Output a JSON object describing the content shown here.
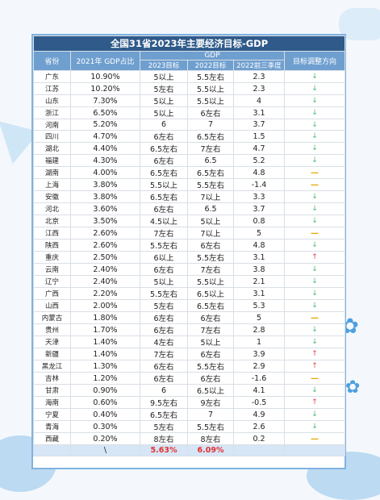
{
  "title": "全国31省2023年主要经济目标-GDP",
  "headers": {
    "province": "省份",
    "share": "2021年 GDP占比",
    "gdp": "GDP",
    "target2023": "2023目标",
    "target2022": "2022目标",
    "q3_2022": "2022前三季度",
    "direction": "目标调整方向"
  },
  "rows": [
    {
      "p": "广东",
      "s": "10.90%",
      "t23": "5以上",
      "t22": "5.5左右",
      "q3": "2.3",
      "d": "down"
    },
    {
      "p": "江苏",
      "s": "10.20%",
      "t23": "5左右",
      "t22": "5.5以上",
      "q3": "2.3",
      "d": "down"
    },
    {
      "p": "山东",
      "s": "7.30%",
      "t23": "5以上",
      "t22": "5.5以上",
      "q3": "4",
      "d": "down"
    },
    {
      "p": "浙江",
      "s": "6.50%",
      "t23": "5以上",
      "t22": "6左右",
      "q3": "3.1",
      "d": "down"
    },
    {
      "p": "河南",
      "s": "5.20%",
      "t23": "6",
      "t22": "7",
      "q3": "3.7",
      "d": "down"
    },
    {
      "p": "四川",
      "s": "4.70%",
      "t23": "6左右",
      "t22": "6.5左右",
      "q3": "1.5",
      "d": "down"
    },
    {
      "p": "湖北",
      "s": "4.40%",
      "t23": "6.5左右",
      "t22": "7左右",
      "q3": "4.7",
      "d": "down"
    },
    {
      "p": "福建",
      "s": "4.30%",
      "t23": "6左右",
      "t22": "6.5",
      "q3": "5.2",
      "d": "down"
    },
    {
      "p": "湖南",
      "s": "4.00%",
      "t23": "6.5左右",
      "t22": "6.5左右",
      "q3": "4.8",
      "d": "flat"
    },
    {
      "p": "上海",
      "s": "3.80%",
      "t23": "5.5以上",
      "t22": "5.5左右",
      "q3": "-1.4",
      "d": "flat"
    },
    {
      "p": "安徽",
      "s": "3.80%",
      "t23": "6.5左右",
      "t22": "7以上",
      "q3": "3.3",
      "d": "down"
    },
    {
      "p": "河北",
      "s": "3.60%",
      "t23": "6左右",
      "t22": "6.5",
      "q3": "3.7",
      "d": "down"
    },
    {
      "p": "北京",
      "s": "3.50%",
      "t23": "4.5以上",
      "t22": "5以上",
      "q3": "0.8",
      "d": "down"
    },
    {
      "p": "江西",
      "s": "2.60%",
      "t23": "7左右",
      "t22": "7以上",
      "q3": "5",
      "d": "flat"
    },
    {
      "p": "陕西",
      "s": "2.60%",
      "t23": "5.5左右",
      "t22": "6左右",
      "q3": "4.8",
      "d": "down"
    },
    {
      "p": "重庆",
      "s": "2.50%",
      "t23": "6以上",
      "t22": "5.5左右",
      "q3": "3.1",
      "d": "up"
    },
    {
      "p": "云南",
      "s": "2.40%",
      "t23": "6左右",
      "t22": "7左右",
      "q3": "3.8",
      "d": "down"
    },
    {
      "p": "辽宁",
      "s": "2.40%",
      "t23": "5以上",
      "t22": "5.5以上",
      "q3": "2.1",
      "d": "down"
    },
    {
      "p": "广西",
      "s": "2.20%",
      "t23": "5.5左右",
      "t22": "6.5以上",
      "q3": "3.1",
      "d": "down"
    },
    {
      "p": "山西",
      "s": "2.00%",
      "t23": "5左右",
      "t22": "6.5左右",
      "q3": "5.3",
      "d": "down"
    },
    {
      "p": "内蒙古",
      "s": "1.80%",
      "t23": "6左右",
      "t22": "6左右",
      "q3": "5",
      "d": "flat"
    },
    {
      "p": "贵州",
      "s": "1.70%",
      "t23": "6左右",
      "t22": "7左右",
      "q3": "2.8",
      "d": "down"
    },
    {
      "p": "天津",
      "s": "1.40%",
      "t23": "4左右",
      "t22": "5以上",
      "q3": "1",
      "d": "down"
    },
    {
      "p": "新疆",
      "s": "1.40%",
      "t23": "7左右",
      "t22": "6左右",
      "q3": "3.9",
      "d": "up"
    },
    {
      "p": "黑龙江",
      "s": "1.30%",
      "t23": "6左右",
      "t22": "5.5左右",
      "q3": "2.9",
      "d": "up"
    },
    {
      "p": "吉林",
      "s": "1.20%",
      "t23": "6左右",
      "t22": "6左右",
      "q3": "-1.6",
      "d": "flat"
    },
    {
      "p": "甘肃",
      "s": "0.90%",
      "t23": "6",
      "t22": "6.5以上",
      "q3": "4.1",
      "d": "down"
    },
    {
      "p": "海南",
      "s": "0.60%",
      "t23": "9.5左右",
      "t22": "9左右",
      "q3": "-0.5",
      "d": "up"
    },
    {
      "p": "宁夏",
      "s": "0.40%",
      "t23": "6.5左右",
      "t22": "7",
      "q3": "4.9",
      "d": "down"
    },
    {
      "p": "青海",
      "s": "0.30%",
      "t23": "5左右",
      "t22": "5.5左右",
      "q3": "2.6",
      "d": "down"
    },
    {
      "p": "西藏",
      "s": "0.20%",
      "t23": "8左右",
      "t22": "8左右",
      "q3": "0.2",
      "d": "flat"
    }
  ],
  "summary": {
    "label": "\\",
    "avg2023": "5.63%",
    "avg2022": "6.09%"
  },
  "symbols": {
    "down": "↓",
    "up": "↑",
    "flat": "—"
  },
  "colors": {
    "down": "#4cb870",
    "up": "#e04848",
    "flat": "#e6a700",
    "title_bg": "#2f5a8a",
    "header_bg": "#6f9fcf"
  }
}
